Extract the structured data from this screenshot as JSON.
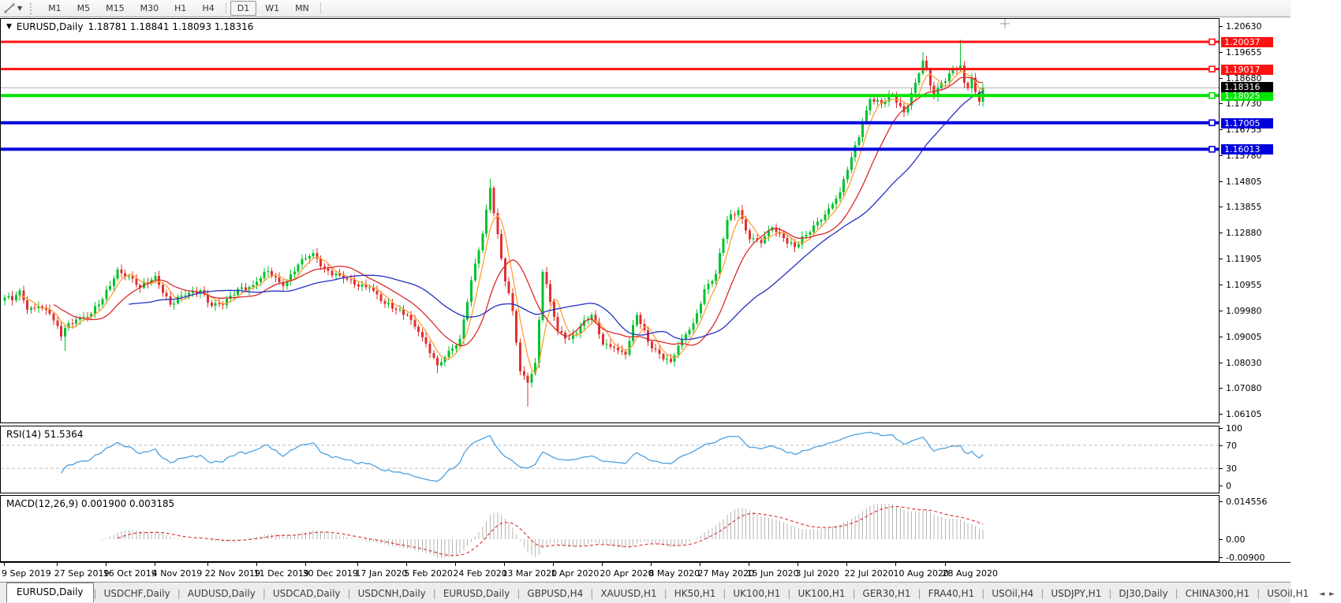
{
  "toolbar": {
    "tool_icon": "trendline-tool-icon",
    "timeframes": [
      {
        "label": "M1",
        "active": false
      },
      {
        "label": "M5",
        "active": false
      },
      {
        "label": "M15",
        "active": false
      },
      {
        "label": "M30",
        "active": false
      },
      {
        "label": "H1",
        "active": false
      },
      {
        "label": "H4",
        "active": false
      },
      {
        "label": "D1",
        "active": true
      },
      {
        "label": "W1",
        "active": false
      },
      {
        "label": "MN",
        "active": false
      }
    ]
  },
  "chart": {
    "title_symbol": "EURUSD,Daily",
    "title_ohlc": "1.18781 1.18841 1.18093 1.18316",
    "rsi_label": "RSI(14) 51.5364",
    "macd_label": "MACD(12,26,9) 0.001900 0.003185"
  },
  "axis": {
    "main_ticks": [
      "1.20630",
      "1.19655",
      "1.18680",
      "1.17730",
      "1.16755",
      "1.15780",
      "1.14805",
      "1.13855",
      "1.12880",
      "1.11905",
      "1.10955",
      "1.09980",
      "1.09005",
      "1.08030",
      "1.07080",
      "1.06105"
    ],
    "rsi_ticks": [
      "100",
      "70",
      "30",
      "0"
    ],
    "macd_ticks": [
      "0.014556",
      "0.00",
      "-0.00900"
    ]
  },
  "current_price": {
    "label": "1.18316",
    "value": 1.18316
  },
  "dates": [
    {
      "text": "9 Sep 2019",
      "idx": 0
    },
    {
      "text": "27 Sep 2019",
      "idx": 14
    },
    {
      "text": "16 Oct 2019",
      "idx": 27
    },
    {
      "text": "4 Nov 2019",
      "idx": 40
    },
    {
      "text": "22 Nov 2019",
      "idx": 54
    },
    {
      "text": "11 Dec 2019",
      "idx": 67
    },
    {
      "text": "30 Dec 2019",
      "idx": 80
    },
    {
      "text": "17 Jan 2020",
      "idx": 94
    },
    {
      "text": "5 Feb 2020",
      "idx": 107
    },
    {
      "text": "24 Feb 2020",
      "idx": 120
    },
    {
      "text": "13 Mar 2020",
      "idx": 133
    },
    {
      "text": "1 Apr 2020",
      "idx": 146
    },
    {
      "text": "20 Apr 2020",
      "idx": 159
    },
    {
      "text": "8 May 2020",
      "idx": 172
    },
    {
      "text": "27 May 2020",
      "idx": 185
    },
    {
      "text": "15 Jun 2020",
      "idx": 198
    },
    {
      "text": "3 Jul 2020",
      "idx": 211
    },
    {
      "text": "22 Jul 2020",
      "idx": 224
    },
    {
      "text": "10 Aug 2020",
      "idx": 237
    },
    {
      "text": "28 Aug 2020",
      "idx": 250
    }
  ],
  "tabs": [
    {
      "label": "EURUSD,Daily",
      "active": true
    },
    {
      "label": "USDCHF,Daily",
      "active": false
    },
    {
      "label": "AUDUSD,Daily",
      "active": false
    },
    {
      "label": "USDCAD,Daily",
      "active": false
    },
    {
      "label": "USDCNH,Daily",
      "active": false
    },
    {
      "label": "EURUSD,Daily",
      "active": false
    },
    {
      "label": "GBPUSD,H4",
      "active": false
    },
    {
      "label": "XAUUSD,H1",
      "active": false
    },
    {
      "label": "HK50,H1",
      "active": false
    },
    {
      "label": "UK100,H1",
      "active": false
    },
    {
      "label": "UK100,H1",
      "active": false
    },
    {
      "label": "GER30,H1",
      "active": false
    },
    {
      "label": "FRA40,H1",
      "active": false
    },
    {
      "label": "USOil,H4",
      "active": false
    },
    {
      "label": "USDJPY,H1",
      "active": false
    },
    {
      "label": "DJ30,Daily",
      "active": false
    },
    {
      "label": "CHINA300,H1",
      "active": false
    },
    {
      "label": "USOil,H1",
      "active": false
    }
  ],
  "tab_scroll": {
    "left": "◄",
    "right": "►"
  },
  "colors": {
    "up": "#00c22e",
    "down": "#e13030",
    "ma_fast": "#ffa133",
    "ma_mid": "#d92b2b",
    "ma_slow": "#2431c4",
    "level_red": "#ff1111",
    "level_green": "#00e400",
    "level_blue": "#0000dd",
    "cur_line": "#b4b4b4",
    "cur_tag_bg": "#000000",
    "rsi_line": "#4da0e0",
    "rsi_dash": "#bdbdbd",
    "macd_hist": "#b5b5b5",
    "macd_signal": "#d92b2b"
  },
  "chart_data": {
    "type": "candlestick",
    "symbol": "EURUSD",
    "timeframe": "Daily",
    "count": 261,
    "x_range": [
      "9 Sep 2019",
      "9 Sep 2020"
    ],
    "y_range": [
      1.0575,
      1.2093
    ],
    "anchors": [
      [
        0,
        1.1046
      ],
      [
        2,
        1.1035
      ],
      [
        4,
        1.1072
      ],
      [
        6,
        1.1
      ],
      [
        9,
        1.1013
      ],
      [
        12,
        1.0985
      ],
      [
        15,
        1.0899
      ],
      [
        16,
        1.0932
      ],
      [
        19,
        1.0963
      ],
      [
        23,
        1.0985
      ],
      [
        26,
        1.104
      ],
      [
        30,
        1.115
      ],
      [
        33,
        1.1126
      ],
      [
        36,
        1.1082
      ],
      [
        40,
        1.1127
      ],
      [
        44,
        1.1019
      ],
      [
        48,
        1.1055
      ],
      [
        52,
        1.1073
      ],
      [
        55,
        1.1014
      ],
      [
        58,
        1.1018
      ],
      [
        62,
        1.1078
      ],
      [
        66,
        1.1093
      ],
      [
        70,
        1.1145
      ],
      [
        74,
        1.1088
      ],
      [
        78,
        1.117
      ],
      [
        82,
        1.1212
      ],
      [
        85,
        1.1153
      ],
      [
        89,
        1.1128
      ],
      [
        93,
        1.1095
      ],
      [
        97,
        1.1084
      ],
      [
        101,
        1.1022
      ],
      [
        104,
        1.1
      ],
      [
        107,
        1.098
      ],
      [
        110,
        1.0917
      ],
      [
        113,
        1.0838
      ],
      [
        115,
        1.0792
      ],
      [
        118,
        1.0846
      ],
      [
        121,
        1.089
      ],
      [
        123,
        1.103
      ],
      [
        125,
        1.1173
      ],
      [
        127,
        1.1285
      ],
      [
        129,
        1.1456
      ],
      [
        131,
        1.1284
      ],
      [
        133,
        1.1106
      ],
      [
        135,
        1.0995
      ],
      [
        137,
        1.077
      ],
      [
        139,
        1.0727
      ],
      [
        141,
        1.08
      ],
      [
        143,
        1.1141
      ],
      [
        145,
        1.103
      ],
      [
        147,
        1.092
      ],
      [
        150,
        1.0891
      ],
      [
        153,
        1.0939
      ],
      [
        156,
        1.098
      ],
      [
        159,
        1.087
      ],
      [
        162,
        1.0858
      ],
      [
        165,
        1.0832
      ],
      [
        168,
        1.098
      ],
      [
        171,
        1.088
      ],
      [
        174,
        1.0834
      ],
      [
        177,
        1.0805
      ],
      [
        180,
        1.089
      ],
      [
        183,
        1.095
      ],
      [
        186,
        1.1076
      ],
      [
        189,
        1.1134
      ],
      [
        192,
        1.1337
      ],
      [
        195,
        1.1373
      ],
      [
        198,
        1.1264
      ],
      [
        201,
        1.125
      ],
      [
        204,
        1.1308
      ],
      [
        207,
        1.1268
      ],
      [
        210,
        1.1234
      ],
      [
        213,
        1.128
      ],
      [
        216,
        1.133
      ],
      [
        219,
        1.138
      ],
      [
        222,
        1.144
      ],
      [
        225,
        1.1571
      ],
      [
        228,
        1.17
      ],
      [
        230,
        1.179
      ],
      [
        233,
        1.177
      ],
      [
        236,
        1.1804
      ],
      [
        239,
        1.174
      ],
      [
        242,
        1.185
      ],
      [
        244,
        1.1933
      ],
      [
        246,
        1.184
      ],
      [
        247,
        1.1797
      ],
      [
        249,
        1.185
      ],
      [
        252,
        1.1903
      ],
      [
        254,
        1.1916
      ],
      [
        255,
        1.185
      ],
      [
        256,
        1.183
      ],
      [
        257,
        1.187
      ],
      [
        258,
        1.1817
      ],
      [
        259,
        1.1779
      ],
      [
        260,
        1.18316
      ]
    ],
    "jitter": [
      0.0009,
      1.93,
      0.0005,
      0.57
    ],
    "wick_overrides": {
      "16": [
        0.0008,
        0.0053
      ],
      "115": [
        0.0008,
        0.003
      ],
      "129": [
        0.0036,
        0.0012
      ],
      "139": [
        0.0012,
        0.0091
      ],
      "244": [
        0.0033,
        0.0008
      ],
      "254": [
        0.0095,
        0.0008
      ]
    },
    "moving_averages": [
      {
        "name": "fast",
        "period": 5,
        "color_key": "ma_fast"
      },
      {
        "name": "mid",
        "period": 14,
        "color_key": "ma_mid"
      },
      {
        "name": "slow",
        "period": 34,
        "color_key": "ma_slow"
      }
    ],
    "levels": [
      {
        "price": 1.20037,
        "label": "1.20037",
        "color_key": "level_red",
        "thick": 3
      },
      {
        "price": 1.19017,
        "label": "1.19017",
        "color_key": "level_red",
        "thick": 3
      },
      {
        "price": 1.18025,
        "label": "1.18025",
        "color_key": "level_green",
        "thick": 4
      },
      {
        "price": 1.17005,
        "label": "1.17005",
        "color_key": "level_blue",
        "thick": 4
      },
      {
        "price": 1.16013,
        "label": "1.16013",
        "color_key": "level_blue",
        "thick": 4
      }
    ],
    "rsi": {
      "period": 14,
      "levels": [
        70,
        30
      ],
      "range": [
        0,
        100
      ]
    },
    "macd": {
      "fast": 12,
      "slow": 26,
      "signal": 9,
      "range": [
        -0.009,
        0.014556
      ]
    }
  }
}
